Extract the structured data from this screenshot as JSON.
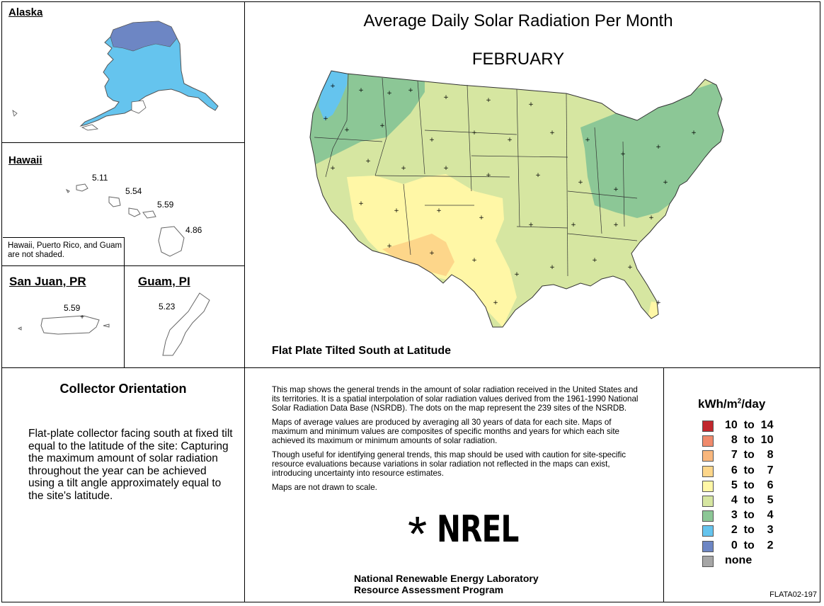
{
  "title": "Average Daily Solar Radiation Per Month",
  "month": "FEBRUARY",
  "orientation_label": "Flat Plate Tilted South at Latitude",
  "insets": {
    "alaska": {
      "title": "Alaska"
    },
    "hawaii": {
      "title": "Hawaii",
      "values": [
        "5.11",
        "5.54",
        "5.59",
        "4.86"
      ],
      "note": "Hawaii, Puerto Rico, and Guam are not shaded."
    },
    "puerto_rico": {
      "title": "San Juan, PR",
      "value": "5.59"
    },
    "guam": {
      "title": "Guam, PI",
      "value": "5.23"
    }
  },
  "collector": {
    "title": "Collector Orientation",
    "text": "Flat-plate collector facing south at fixed tilt equal to the latitude of the site:  Capturing the maximum amount of solar radiation throughout the year can be achieved using a tilt angle approximately equal to the site's latitude."
  },
  "description": [
    "This map shows the general trends in the amount of solar radiation received in the United States and its territories.  It is a spatial interpolation of solar radiation values derived from the 1961-1990 National Solar Radiation Data Base (NSRDB).  The dots on the map represent the 239 sites of the NSRDB.",
    "Maps of average values are produced by averaging all 30 years of data for each site. Maps of maximum and minimum values are composites of specific months and years for which each site achieved its maximum or minimum amounts of solar radiation.",
    "Though useful for identifying general trends, this map should be used with caution for site-specific resource evaluations because variations in solar radiation not reflected in the maps can exist, introducing uncertainty into resource estimates.",
    "Maps are not drawn to scale."
  ],
  "logo": {
    "star": "*",
    "word": "NREL"
  },
  "lab": {
    "line1": "National Renewable Energy Laboratory",
    "line2": "Resource Assessment Program"
  },
  "code": "FLATA02-197",
  "legend": {
    "unit_prefix": "kWh/m",
    "unit_sup": "2",
    "unit_suffix": "/day",
    "items": [
      {
        "label": "10  to  14",
        "color": "#c1272d"
      },
      {
        "label": "  8  to  10",
        "color": "#f08a6c"
      },
      {
        "label": "  7  to    8",
        "color": "#f9b77d"
      },
      {
        "label": "  6  to    7",
        "color": "#fdd68a"
      },
      {
        "label": "  5  to    6",
        "color": "#fff7a6"
      },
      {
        "label": "  4  to    5",
        "color": "#d6e6a1"
      },
      {
        "label": "  3  to    4",
        "color": "#8cc796"
      },
      {
        "label": "  2  to    3",
        "color": "#65c4ee"
      },
      {
        "label": "  0  to    2",
        "color": "#6d86c4"
      },
      {
        "label": "none",
        "color": "#a6a6a6"
      }
    ]
  },
  "zone_colors": {
    "z5to6": "#fff7a6",
    "z6to7": "#fdd68a",
    "z4to5": "#d6e6a1",
    "z3to4": "#8cc796",
    "z2to3": "#65c4ee",
    "z0to2": "#6d86c4"
  }
}
